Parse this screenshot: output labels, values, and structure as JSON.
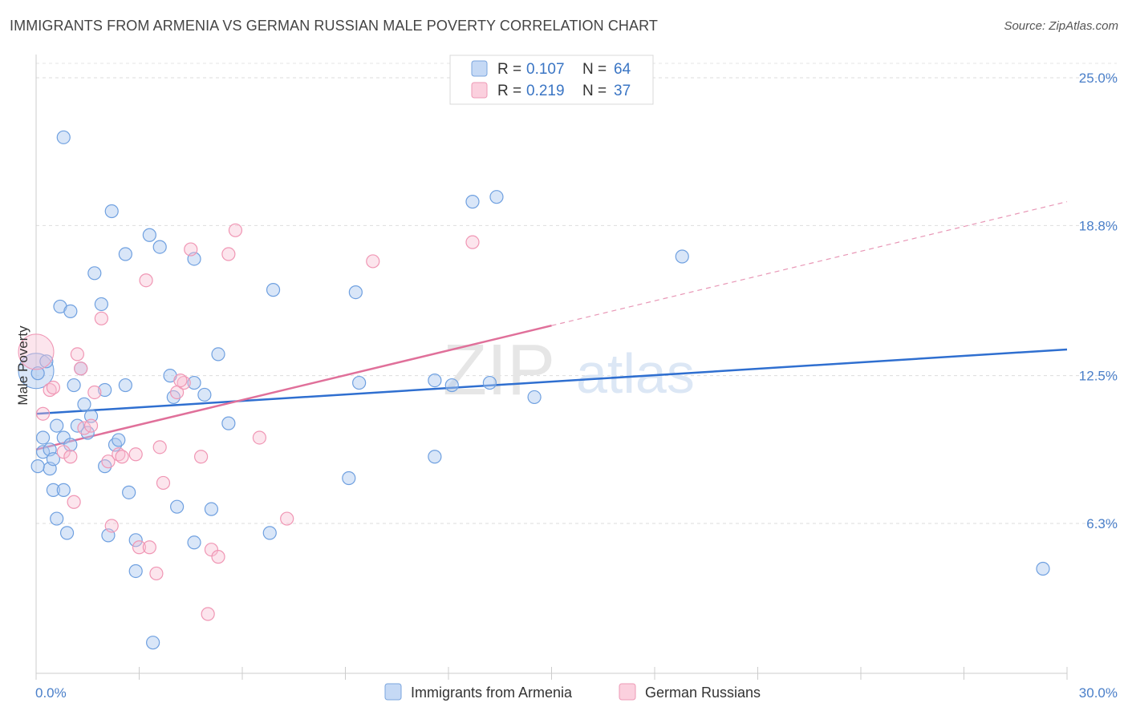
{
  "title": "IMMIGRANTS FROM ARMENIA VS GERMAN RUSSIAN MALE POVERTY CORRELATION CHART",
  "source": "Source: ZipAtlas.com",
  "watermark": {
    "zip": "ZIP",
    "atlas": "atlas"
  },
  "chart_data": {
    "type": "scatter",
    "xlabel": "",
    "ylabel": "Male Poverty",
    "xlim": [
      0,
      30
    ],
    "ylim": [
      0,
      26
    ],
    "x_tick_labels": [
      {
        "value": 0,
        "label": "0.0%"
      },
      {
        "value": 30,
        "label": "30.0%"
      }
    ],
    "y_tick_labels": [
      {
        "value": 6.3,
        "label": "6.3%"
      },
      {
        "value": 12.5,
        "label": "12.5%"
      },
      {
        "value": 18.8,
        "label": "18.8%"
      },
      {
        "value": 25.0,
        "label": "25.0%"
      }
    ],
    "legend": [
      {
        "name": "Immigrants from Armenia",
        "r_label": "R =",
        "r": "0.107",
        "n_label": "N =",
        "n": "64",
        "color": "#6fa0e0"
      },
      {
        "name": "German Russians",
        "r_label": "R =",
        "r": "0.219",
        "n_label": "N =",
        "n": "37",
        "color": "#f096b4"
      }
    ],
    "series": [
      {
        "name": "Immigrants from Armenia",
        "color": "#6fa0e0",
        "trend": {
          "x0": 0,
          "y0": 10.9,
          "x1": 30,
          "y1": 13.6,
          "dashed_from": null
        },
        "points": [
          [
            0.05,
            12.6
          ],
          [
            0.2,
            9.9
          ],
          [
            0.2,
            9.3
          ],
          [
            0.3,
            13.1
          ],
          [
            0.4,
            9.4
          ],
          [
            0.4,
            8.6
          ],
          [
            0.5,
            9.0
          ],
          [
            0.5,
            7.7
          ],
          [
            0.6,
            10.4
          ],
          [
            0.6,
            6.5
          ],
          [
            0.7,
            15.4
          ],
          [
            0.8,
            9.9
          ],
          [
            0.8,
            7.7
          ],
          [
            0.9,
            5.9
          ],
          [
            1.0,
            15.2
          ],
          [
            1.0,
            9.6
          ],
          [
            1.1,
            12.1
          ],
          [
            1.2,
            10.4
          ],
          [
            1.3,
            12.8
          ],
          [
            1.4,
            11.3
          ],
          [
            1.5,
            10.1
          ],
          [
            1.6,
            10.8
          ],
          [
            1.7,
            16.8
          ],
          [
            1.9,
            15.5
          ],
          [
            2.0,
            8.7
          ],
          [
            2.0,
            11.9
          ],
          [
            2.1,
            5.8
          ],
          [
            2.2,
            19.4
          ],
          [
            2.3,
            9.6
          ],
          [
            2.4,
            9.8
          ],
          [
            2.6,
            12.1
          ],
          [
            2.6,
            17.6
          ],
          [
            2.7,
            7.6
          ],
          [
            2.9,
            5.6
          ],
          [
            2.9,
            4.3
          ],
          [
            3.3,
            18.4
          ],
          [
            3.4,
            1.3
          ],
          [
            3.6,
            17.9
          ],
          [
            3.9,
            12.5
          ],
          [
            4.0,
            11.6
          ],
          [
            4.1,
            7.0
          ],
          [
            4.6,
            12.2
          ],
          [
            4.6,
            17.4
          ],
          [
            4.9,
            11.7
          ],
          [
            5.1,
            6.9
          ],
          [
            5.3,
            13.4
          ],
          [
            5.6,
            10.5
          ],
          [
            0.8,
            22.5
          ],
          [
            6.9,
            16.1
          ],
          [
            6.8,
            5.9
          ],
          [
            9.1,
            8.2
          ],
          [
            9.3,
            16.0
          ],
          [
            9.4,
            12.2
          ],
          [
            11.6,
            9.1
          ],
          [
            11.6,
            12.3
          ],
          [
            12.1,
            12.1
          ],
          [
            12.7,
            19.8
          ],
          [
            13.2,
            12.2
          ],
          [
            13.4,
            20.0
          ],
          [
            14.5,
            11.6
          ],
          [
            18.8,
            17.5
          ],
          [
            29.3,
            4.4
          ],
          [
            0.05,
            8.7
          ],
          [
            4.6,
            5.5
          ]
        ],
        "big_point": [
          0,
          12.7
        ]
      },
      {
        "name": "German Russians",
        "color": "#f096b4",
        "trend": {
          "x0": 0,
          "y0": 9.4,
          "x1": 15.0,
          "y1": 14.6,
          "dashed_to_x": 30,
          "dashed_to_y": 19.8
        },
        "points": [
          [
            0.2,
            10.9
          ],
          [
            0.4,
            11.9
          ],
          [
            0.5,
            12.0
          ],
          [
            0.8,
            9.3
          ],
          [
            1.0,
            9.1
          ],
          [
            1.1,
            7.2
          ],
          [
            1.2,
            13.4
          ],
          [
            1.3,
            12.8
          ],
          [
            1.4,
            10.3
          ],
          [
            1.6,
            10.4
          ],
          [
            1.7,
            11.8
          ],
          [
            1.9,
            14.9
          ],
          [
            2.1,
            8.9
          ],
          [
            2.2,
            6.2
          ],
          [
            2.4,
            9.2
          ],
          [
            2.5,
            9.1
          ],
          [
            2.9,
            9.2
          ],
          [
            3.0,
            5.3
          ],
          [
            3.2,
            16.5
          ],
          [
            3.3,
            5.3
          ],
          [
            3.5,
            4.2
          ],
          [
            3.6,
            9.5
          ],
          [
            3.7,
            8.0
          ],
          [
            4.1,
            11.8
          ],
          [
            4.3,
            12.2
          ],
          [
            4.5,
            17.8
          ],
          [
            4.8,
            9.1
          ],
          [
            5.0,
            2.5
          ],
          [
            5.1,
            5.2
          ],
          [
            5.3,
            4.9
          ],
          [
            5.6,
            17.6
          ],
          [
            5.8,
            18.6
          ],
          [
            6.5,
            9.9
          ],
          [
            7.3,
            6.5
          ],
          [
            9.8,
            17.3
          ],
          [
            12.7,
            18.1
          ],
          [
            4.2,
            12.3
          ]
        ],
        "big_point": [
          0,
          13.5
        ]
      }
    ]
  },
  "bottom_legend": [
    {
      "label": "Immigrants from Armenia"
    },
    {
      "label": "German Russians"
    }
  ]
}
